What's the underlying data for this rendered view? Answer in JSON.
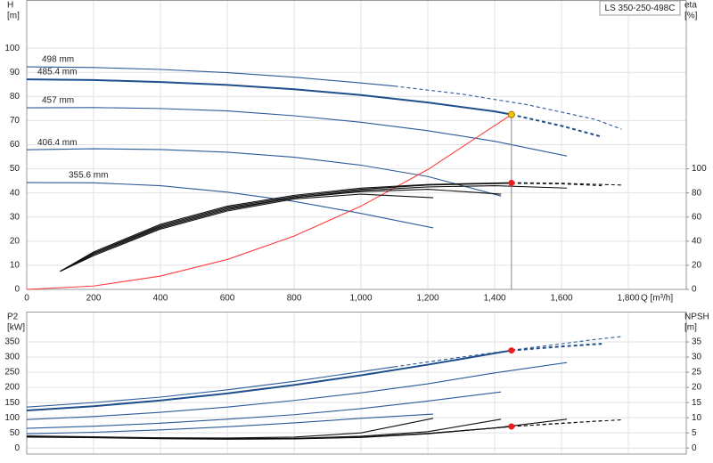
{
  "chart_data": [
    {
      "type": "line",
      "title": "LS 350-250-498C",
      "x_label": "Q [m³/h]",
      "y_label": "H",
      "y_unit": "[m]",
      "y2_label": "eta",
      "y2_unit": "[%]",
      "xlim": [
        0,
        1973
      ],
      "ylim": [
        0,
        120
      ],
      "y2lim": [
        0,
        240
      ],
      "grid": true,
      "x_tick_labels": true,
      "xticks": [
        0,
        200,
        400,
        600,
        800,
        {
          "value": 1000,
          "label": "1,000"
        },
        {
          "value": 1200,
          "label": "1,200"
        },
        {
          "value": 1400,
          "label": "1,400"
        },
        {
          "value": 1600,
          "label": "1,600"
        },
        {
          "value": 1800,
          "label": "1,800"
        }
      ],
      "yticks": [
        0,
        10,
        20,
        30,
        40,
        50,
        60,
        70,
        80,
        90,
        100
      ],
      "y2ticks": [
        0,
        20,
        40,
        60,
        80,
        100
      ],
      "series": [
        {
          "name": "498 mm",
          "color": "#2b5a9a",
          "dashed": false,
          "x": [
            0,
            200,
            400,
            600,
            800,
            1000,
            1100
          ],
          "values": [
            92.3,
            92,
            91.2,
            89.9,
            88,
            85.6,
            84.3
          ]
        },
        {
          "color": "#2b5a9a",
          "dashed": true,
          "x": [
            1100,
            1300,
            1500,
            1700,
            1780
          ],
          "values": [
            84.3,
            81,
            76.5,
            70.5,
            66.4
          ]
        },
        {
          "name": "485.4 mm",
          "color": "#1f4e8c",
          "dashed": false,
          "width": 2,
          "x": [
            0,
            200,
            400,
            600,
            800,
            1000,
            1200,
            1400,
            1450
          ],
          "values": [
            87.1,
            86.8,
            86,
            84.8,
            83,
            80.6,
            77.5,
            73.8,
            72.5
          ]
        },
        {
          "color": "#1f4e8c",
          "dashed": true,
          "width": 2,
          "x": [
            1450,
            1600,
            1720
          ],
          "values": [
            72.5,
            67.8,
            63.3
          ]
        },
        {
          "name": "457 mm",
          "color": "#2b5a9a",
          "dashed": false,
          "x": [
            0,
            200,
            400,
            600,
            800,
            1000,
            1200,
            1400,
            1616
          ],
          "values": [
            75.3,
            75.4,
            75,
            74,
            72,
            69.3,
            65.8,
            61.4,
            55.3
          ]
        },
        {
          "name": "406.4 mm",
          "color": "#2b5a9a",
          "dashed": false,
          "x": [
            0,
            200,
            400,
            600,
            800,
            1000,
            1200,
            1419
          ],
          "values": [
            57.9,
            58.3,
            58,
            56.9,
            54.8,
            51.5,
            46.8,
            38.7
          ]
        },
        {
          "name": "355.6 mm",
          "color": "#2b5a9a",
          "dashed": false,
          "x": [
            0,
            200,
            400,
            600,
            800,
            1000,
            1216
          ],
          "values": [
            44.3,
            44.2,
            43,
            40.3,
            36.5,
            31.5,
            25.5
          ]
        },
        {
          "color": "#ff3b3b",
          "dashed": false,
          "x": [
            0,
            200,
            400,
            600,
            800,
            1000,
            1200,
            1450
          ],
          "values": [
            0,
            1.38,
            5.52,
            12.4,
            22.1,
            34.5,
            49.7,
            72.5
          ]
        },
        {
          "axis": "y2",
          "color": "#111111",
          "dashed": false,
          "x": [
            100,
            200,
            400,
            600,
            800,
            1000,
            1200,
            1450
          ],
          "values": [
            15,
            31,
            54,
            69,
            78,
            84,
            87,
            88.5
          ]
        },
        {
          "axis": "y2",
          "color": "#111111",
          "dashed": true,
          "x": [
            1450,
            1600,
            1780
          ],
          "values": [
            88.5,
            88,
            86.5
          ]
        },
        {
          "axis": "y2",
          "color": "#111111",
          "dashed": false,
          "x": [
            100,
            200,
            400,
            600,
            800,
            1000,
            1200,
            1450
          ],
          "values": [
            15,
            30,
            53,
            68,
            77,
            83,
            86.5,
            88
          ]
        },
        {
          "axis": "y2",
          "color": "#111111",
          "dashed": true,
          "x": [
            1450,
            1600,
            1720
          ],
          "values": [
            88,
            87.5,
            86
          ]
        },
        {
          "axis": "y2",
          "color": "#111111",
          "dashed": false,
          "x": [
            100,
            200,
            400,
            600,
            800,
            1000,
            1200,
            1400,
            1616
          ],
          "values": [
            15,
            30,
            52,
            67,
            76,
            82,
            85,
            86,
            84
          ]
        },
        {
          "axis": "y2",
          "color": "#111111",
          "dashed": false,
          "x": [
            100,
            200,
            400,
            600,
            800,
            1000,
            1200,
            1419
          ],
          "values": [
            15,
            29,
            51,
            66,
            76,
            81,
            83,
            79
          ]
        },
        {
          "axis": "y2",
          "color": "#111111",
          "dashed": false,
          "x": [
            100,
            200,
            400,
            600,
            800,
            1000,
            1216
          ],
          "values": [
            15,
            28,
            50,
            65,
            75,
            79,
            76
          ]
        },
        {
          "marker": true,
          "drop_line": true,
          "color": "#f5c400",
          "x": [
            1450
          ],
          "values": [
            72.5
          ]
        },
        {
          "marker": true,
          "axis": "y2",
          "color": "#ee1c1c",
          "x": [
            1450
          ],
          "values": [
            88.3
          ]
        }
      ]
    },
    {
      "type": "line",
      "y_label": "P2",
      "y_unit": "[kW]",
      "y2_label": "NPSH",
      "y2_unit": "[m]",
      "xlim": [
        0,
        1973
      ],
      "ylim": [
        -20,
        450
      ],
      "y2lim": [
        -2,
        45
      ],
      "grid": true,
      "x_tick_labels": false,
      "xticks": [
        0,
        200,
        400,
        600,
        800,
        1000,
        1200,
        1400,
        1600,
        1800
      ],
      "yticks": [
        0,
        50,
        100,
        150,
        200,
        250,
        300,
        350
      ],
      "y2ticks": [
        0,
        5,
        10,
        15,
        20,
        25,
        30,
        35
      ],
      "series": [
        {
          "color": "#2b5a9a",
          "dashed": false,
          "x": [
            0,
            200,
            400,
            600,
            800,
            1000,
            1100
          ],
          "values": [
            135,
            150,
            168,
            192,
            220,
            252,
            268
          ]
        },
        {
          "color": "#2b5a9a",
          "dashed": true,
          "x": [
            1100,
            1300,
            1500,
            1700,
            1780
          ],
          "values": [
            268,
            300,
            330,
            358,
            368
          ]
        },
        {
          "color": "#1f4e8c",
          "dashed": false,
          "width": 2,
          "x": [
            0,
            200,
            400,
            600,
            800,
            1000,
            1200,
            1450
          ],
          "values": [
            124,
            138,
            157,
            180,
            208,
            240,
            275,
            322
          ]
        },
        {
          "color": "#1f4e8c",
          "dashed": true,
          "width": 2,
          "x": [
            1450,
            1600,
            1720
          ],
          "values": [
            322,
            335,
            344
          ]
        },
        {
          "color": "#2b5a9a",
          "dashed": false,
          "x": [
            0,
            200,
            400,
            600,
            800,
            1000,
            1200,
            1400,
            1616
          ],
          "values": [
            94,
            104,
            118,
            135,
            157,
            182,
            212,
            248,
            282
          ]
        },
        {
          "color": "#2b5a9a",
          "dashed": false,
          "x": [
            0,
            200,
            400,
            600,
            800,
            1000,
            1200,
            1419
          ],
          "values": [
            65,
            72,
            82,
            95,
            110,
            130,
            155,
            185
          ]
        },
        {
          "color": "#2b5a9a",
          "dashed": false,
          "x": [
            0,
            200,
            400,
            600,
            800,
            1000,
            1216
          ],
          "values": [
            47,
            52,
            60,
            70,
            83,
            98,
            112
          ]
        },
        {
          "axis": "y2",
          "color": "#111111",
          "dashed": false,
          "x": [
            0,
            200,
            400,
            600,
            800,
            1000,
            1200,
            1450
          ],
          "values": [
            3.6,
            3.4,
            3.1,
            2.9,
            3,
            3.5,
            4.7,
            7.1
          ]
        },
        {
          "axis": "y2",
          "color": "#111111",
          "dashed": true,
          "x": [
            1450,
            1600,
            1780
          ],
          "values": [
            7.1,
            8.2,
            9.3
          ]
        },
        {
          "axis": "y2",
          "color": "#111111",
          "dashed": false,
          "x": [
            0,
            200,
            400,
            600,
            800,
            1000,
            1200,
            1450
          ],
          "values": [
            3.7,
            3.5,
            3.2,
            3,
            3.1,
            3.6,
            4.8,
            7.1
          ]
        },
        {
          "axis": "y2",
          "color": "#111111",
          "dashed": true,
          "x": [
            1450,
            1600,
            1720
          ],
          "values": [
            7.1,
            8.1,
            9
          ]
        },
        {
          "axis": "y2",
          "color": "#111111",
          "dashed": false,
          "x": [
            0,
            200,
            400,
            600,
            800,
            1000,
            1200,
            1400,
            1616
          ],
          "values": [
            3.8,
            3.6,
            3.2,
            3,
            3.1,
            3.6,
            4.8,
            6.6,
            9.5
          ]
        },
        {
          "axis": "y2",
          "color": "#111111",
          "dashed": false,
          "x": [
            0,
            200,
            400,
            600,
            800,
            1000,
            1200,
            1419
          ],
          "values": [
            3.9,
            3.6,
            3.3,
            3.1,
            3.2,
            3.9,
            5.4,
            9.5
          ]
        },
        {
          "axis": "y2",
          "color": "#111111",
          "dashed": false,
          "x": [
            0,
            200,
            400,
            600,
            800,
            1000,
            1216
          ],
          "values": [
            4,
            3.7,
            3.4,
            3.3,
            3.6,
            5,
            9.8
          ]
        },
        {
          "marker": true,
          "color": "#ee1c1c",
          "x": [
            1450
          ],
          "values": [
            322
          ]
        },
        {
          "marker": true,
          "axis": "y2",
          "color": "#ee1c1c",
          "x": [
            1450
          ],
          "values": [
            7.1
          ]
        }
      ]
    }
  ]
}
